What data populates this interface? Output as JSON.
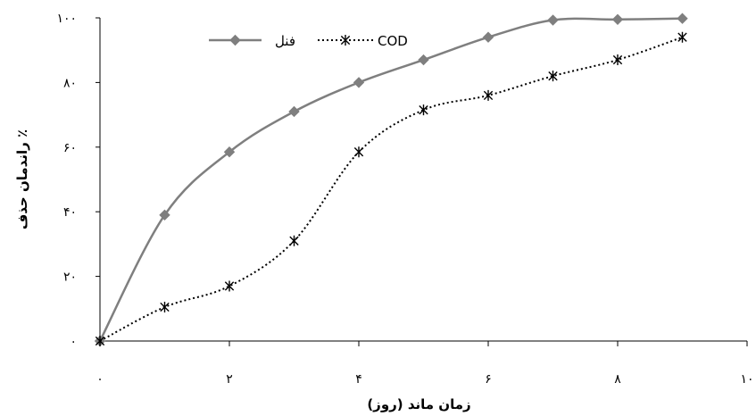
{
  "chart_data": {
    "type": "line",
    "xlabel": "زمان ماند (روز)",
    "ylabel": "راندمان حذف ٪",
    "xlim": [
      0,
      10
    ],
    "ylim": [
      0,
      100
    ],
    "x_ticks": [
      "۰",
      "۲",
      "۴",
      "۶",
      "۸",
      "۱۰"
    ],
    "y_ticks": [
      "۰",
      "۲۰",
      "۴۰",
      "۶۰",
      "۸۰",
      "۱۰۰"
    ],
    "grid": false,
    "legend_position": "top-center",
    "series": [
      {
        "name": "فنل",
        "color": "#7f7f7f",
        "marker": "diamond",
        "line_style": "solid",
        "x": [
          0,
          1,
          2,
          3,
          4,
          5,
          6,
          7,
          8,
          9
        ],
        "y": [
          0,
          39,
          58.5,
          71,
          80,
          87,
          94,
          99.3,
          99.5,
          99.8
        ]
      },
      {
        "name": "COD",
        "color": "#000000",
        "marker": "asterisk",
        "line_style": "dotted",
        "x": [
          0,
          1,
          2,
          3,
          4,
          5,
          6,
          7,
          8,
          9
        ],
        "y": [
          0,
          10.5,
          17,
          31,
          58.5,
          71.5,
          76,
          82,
          87,
          94
        ]
      }
    ]
  }
}
